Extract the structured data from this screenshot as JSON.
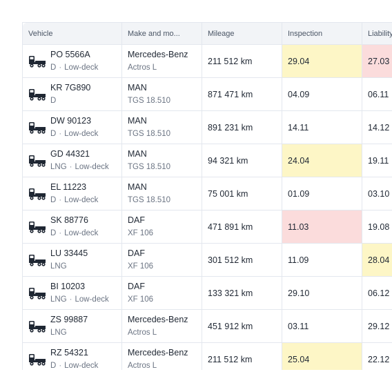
{
  "colors": {
    "warn": "#fdf6c6",
    "alert": "#fbdcdc",
    "header_bg": "#f2f4f7"
  },
  "table": {
    "headers": {
      "vehicle": "Vehicle",
      "make": "Make and mo...",
      "mileage": "Mileage",
      "inspection": "Inspection",
      "liability": "Liability"
    },
    "rows": [
      {
        "plate": "PO 5566A",
        "fuel": "D",
        "deck": "Low-deck",
        "make": "Mercedes-Benz",
        "model": "Actros L",
        "mileage": "211 512 km",
        "inspection": "29.04",
        "inspection_status": "warn",
        "liability": "27.03",
        "liability_status": "alert"
      },
      {
        "plate": "KR 7G890",
        "fuel": "D",
        "deck": "",
        "make": "MAN",
        "model": "TGS 18.510",
        "mileage": "871 471 km",
        "inspection": "04.09",
        "inspection_status": "",
        "liability": "06.11",
        "liability_status": ""
      },
      {
        "plate": "DW 90123",
        "fuel": "D",
        "deck": "Low-deck",
        "make": "MAN",
        "model": "TGS 18.510",
        "mileage": "891 231 km",
        "inspection": "14.11",
        "inspection_status": "",
        "liability": "14.12",
        "liability_status": ""
      },
      {
        "plate": "GD 44321",
        "fuel": "LNG",
        "deck": "Low-deck",
        "make": "MAN",
        "model": "TGS 18.510",
        "mileage": "94 321 km",
        "inspection": "24.04",
        "inspection_status": "warn",
        "liability": "19.11",
        "liability_status": ""
      },
      {
        "plate": "EL 11223",
        "fuel": "D",
        "deck": "Low-deck",
        "make": "MAN",
        "model": "TGS 18.510",
        "mileage": "75 001 km",
        "inspection": "01.09",
        "inspection_status": "",
        "liability": "03.10",
        "liability_status": ""
      },
      {
        "plate": "SK 88776",
        "fuel": "D",
        "deck": "Low-deck",
        "make": "DAF",
        "model": "XF 106",
        "mileage": "471 891 km",
        "inspection": "11.03",
        "inspection_status": "alert",
        "liability": "19.08",
        "liability_status": ""
      },
      {
        "plate": "LU 33445",
        "fuel": "LNG",
        "deck": "",
        "make": "DAF",
        "model": "XF 106",
        "mileage": "301 512 km",
        "inspection": "11.09",
        "inspection_status": "",
        "liability": "28.04",
        "liability_status": "warn"
      },
      {
        "plate": "BI 10203",
        "fuel": "LNG",
        "deck": "Low-deck",
        "make": "DAF",
        "model": "XF 106",
        "mileage": "133 321 km",
        "inspection": "29.10",
        "inspection_status": "",
        "liability": "06.12",
        "liability_status": ""
      },
      {
        "plate": "ZS 99887",
        "fuel": "LNG",
        "deck": "",
        "make": "Mercedes-Benz",
        "model": "Actros L",
        "mileage": "451 912 km",
        "inspection": "03.11",
        "inspection_status": "",
        "liability": "29.12",
        "liability_status": ""
      },
      {
        "plate": "RZ 54321",
        "fuel": "D",
        "deck": "Low-deck",
        "make": "Mercedes-Benz",
        "model": "Actros L",
        "mileage": "211 512 km",
        "inspection": "25.04",
        "inspection_status": "warn",
        "liability": "22.12",
        "liability_status": ""
      }
    ]
  }
}
